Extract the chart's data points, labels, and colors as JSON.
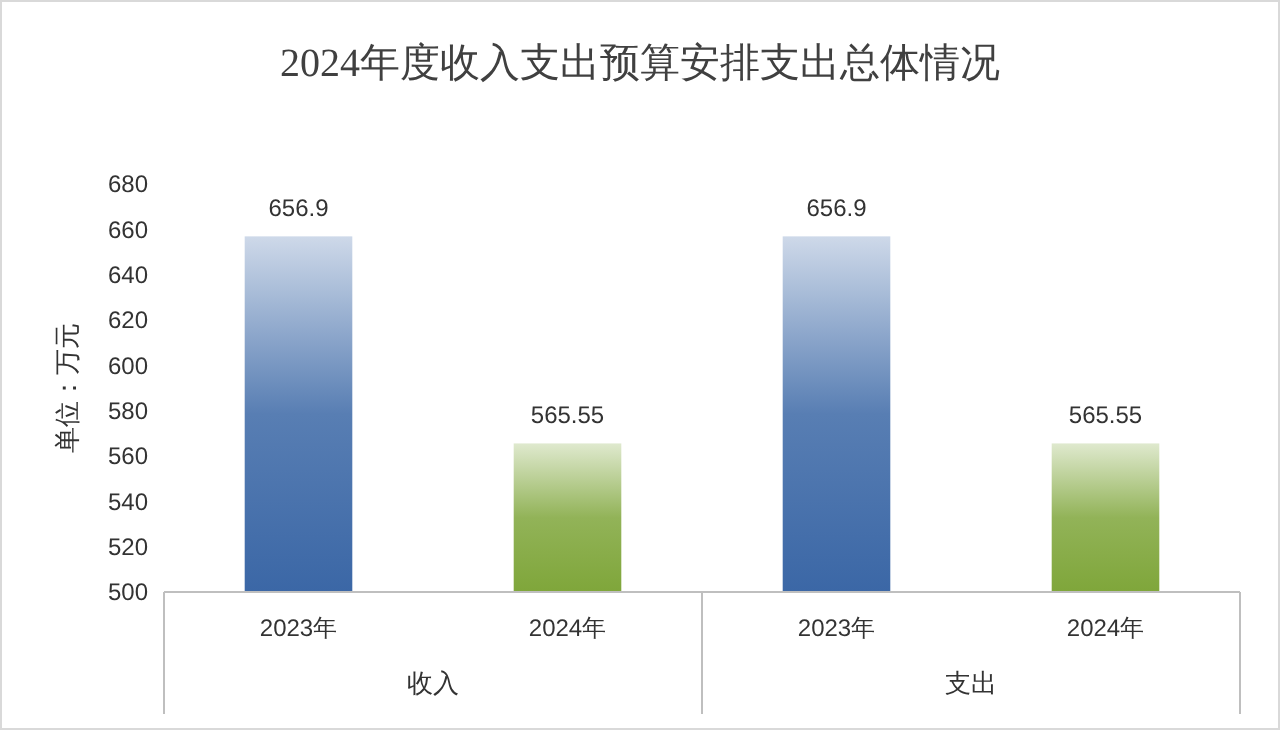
{
  "chart_data": {
    "type": "bar",
    "title": "2024年度收入支出预算安排支出总体情况",
    "ylabel": "单位：万元",
    "categories": [
      "2023年",
      "2024年",
      "2023年",
      "2024年"
    ],
    "values": [
      656.9,
      565.55,
      656.9,
      565.55
    ],
    "colors": [
      "#3b67a6",
      "#7fa63a",
      "#3b67a6",
      "#7fa63a"
    ],
    "ylim": [
      500,
      680
    ],
    "yticks": [
      500,
      520,
      540,
      560,
      580,
      600,
      620,
      640,
      660,
      680
    ],
    "data_labels": true,
    "grid": false,
    "annotations": [
      "收入",
      "支出"
    ]
  }
}
